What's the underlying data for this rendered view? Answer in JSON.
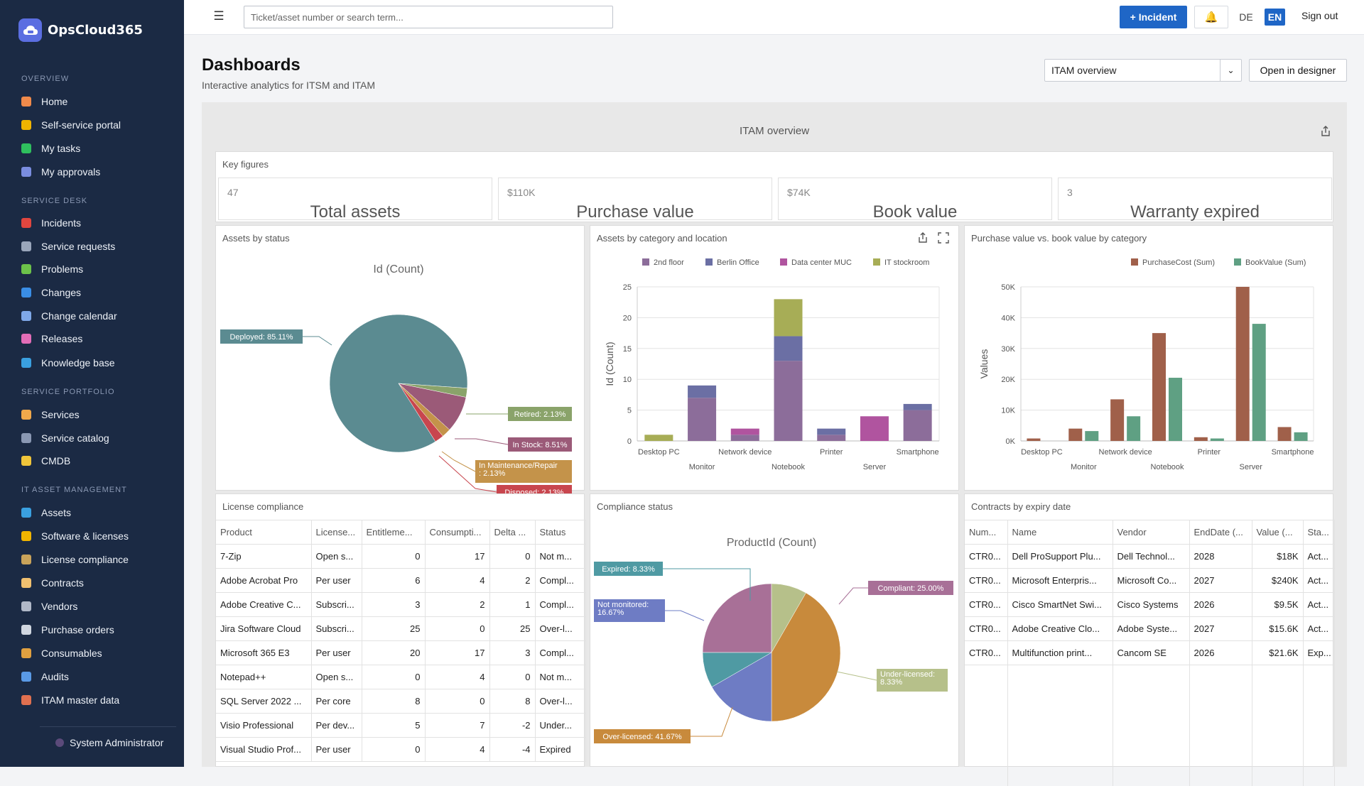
{
  "app": {
    "brand": "OpsCloud365"
  },
  "sidebar": {
    "sections": [
      {
        "label": "OVERVIEW",
        "items": [
          {
            "label": "Home",
            "icon": "home-icon",
            "color": "#f08a4b"
          },
          {
            "label": "Self-service portal",
            "icon": "user-icon",
            "color": "#f0b400"
          },
          {
            "label": "My tasks",
            "icon": "check-square-icon",
            "color": "#2fbf5e"
          },
          {
            "label": "My approvals",
            "icon": "checkmark-icon",
            "color": "#7a8de0"
          }
        ]
      },
      {
        "label": "SERVICE DESK",
        "items": [
          {
            "label": "Incidents",
            "icon": "siren-icon",
            "color": "#e0463f"
          },
          {
            "label": "Service requests",
            "icon": "inbox-icon",
            "color": "#9aa6bb"
          },
          {
            "label": "Problems",
            "icon": "puzzle-icon",
            "color": "#6cc24a"
          },
          {
            "label": "Changes",
            "icon": "refresh-icon",
            "color": "#3a8ee6"
          },
          {
            "label": "Change calendar",
            "icon": "calendar-icon",
            "color": "#7fa8e8"
          },
          {
            "label": "Releases",
            "icon": "rocket-icon",
            "color": "#e26db7"
          },
          {
            "label": "Knowledge base",
            "icon": "books-icon",
            "color": "#3aa0e0"
          }
        ]
      },
      {
        "label": "SERVICE PORTFOLIO",
        "items": [
          {
            "label": "Services",
            "icon": "cloud-icon",
            "color": "#f0a84b"
          },
          {
            "label": "Service catalog",
            "icon": "catalog-icon",
            "color": "#8a98b3"
          },
          {
            "label": "CMDB",
            "icon": "folder-icon",
            "color": "#f0c53a"
          }
        ]
      },
      {
        "label": "IT ASSET MANAGEMENT",
        "items": [
          {
            "label": "Assets",
            "icon": "monitor-icon",
            "color": "#3aa0e0"
          },
          {
            "label": "Software & licenses",
            "icon": "disc-icon",
            "color": "#f0b400"
          },
          {
            "label": "License compliance",
            "icon": "scale-icon",
            "color": "#c9a35a"
          },
          {
            "label": "Contracts",
            "icon": "document-icon",
            "color": "#f0c070"
          },
          {
            "label": "Vendors",
            "icon": "building-icon",
            "color": "#b0b8c8"
          },
          {
            "label": "Purchase orders",
            "icon": "receipt-icon",
            "color": "#d0d6e0"
          },
          {
            "label": "Consumables",
            "icon": "box-icon",
            "color": "#e0a040"
          },
          {
            "label": "Audits",
            "icon": "magnifier-icon",
            "color": "#5a9ae6"
          },
          {
            "label": "ITAM master data",
            "icon": "bricks-icon",
            "color": "#e07050"
          }
        ]
      }
    ],
    "user": "System Administrator"
  },
  "topbar": {
    "search_placeholder": "Ticket/asset number or search term...",
    "incident_button": "+ Incident",
    "lang_de": "DE",
    "lang_en": "EN",
    "sign_out": "Sign out"
  },
  "page": {
    "title": "Dashboards",
    "subtitle": "Interactive analytics for ITSM and ITAM",
    "selected_dashboard": "ITAM overview",
    "open_designer": "Open in designer"
  },
  "dashboard": {
    "title": "ITAM overview",
    "key_figures": {
      "title": "Key figures",
      "items": [
        {
          "small": "47",
          "label": "Total assets"
        },
        {
          "small": "$110K",
          "label": "Purchase value"
        },
        {
          "small": "$74K",
          "label": "Book value"
        },
        {
          "small": "3",
          "label": "Warranty expired"
        }
      ]
    },
    "assets_by_status": {
      "title": "Assets by status"
    },
    "assets_by_category": {
      "title": "Assets by category and location"
    },
    "purchase_vs_book": {
      "title": "Purchase value vs. book value by category"
    },
    "license_compliance": {
      "title": "License compliance",
      "columns": [
        "Product",
        "License...",
        "Entitleme...",
        "Consumpti...",
        "Delta ...",
        "Status"
      ],
      "rows": [
        [
          "7-Zip",
          "Open s...",
          "0",
          "17",
          "0",
          "Not m..."
        ],
        [
          "Adobe Acrobat Pro",
          "Per user",
          "6",
          "4",
          "2",
          "Compl..."
        ],
        [
          "Adobe Creative C...",
          "Subscri...",
          "3",
          "2",
          "1",
          "Compl..."
        ],
        [
          "Jira Software Cloud",
          "Subscri...",
          "25",
          "0",
          "25",
          "Over-l..."
        ],
        [
          "Microsoft 365 E3",
          "Per user",
          "20",
          "17",
          "3",
          "Compl..."
        ],
        [
          "Notepad++",
          "Open s...",
          "0",
          "4",
          "0",
          "Not m..."
        ],
        [
          "SQL Server 2022 ...",
          "Per core",
          "8",
          "0",
          "8",
          "Over-l..."
        ],
        [
          "Visio Professional",
          "Per dev...",
          "5",
          "7",
          "-2",
          "Under..."
        ],
        [
          "Visual Studio Prof...",
          "Per user",
          "0",
          "4",
          "-4",
          "Expired"
        ]
      ]
    },
    "compliance_status": {
      "title": "Compliance status"
    },
    "contracts": {
      "title": "Contracts by expiry date",
      "columns": [
        "Num...",
        "Name",
        "Vendor",
        "EndDate (...",
        "Value (...",
        "Sta..."
      ],
      "rows": [
        [
          "CTR0...",
          "Dell ProSupport Plu...",
          "Dell Technol...",
          "2028",
          "$18K",
          "Act..."
        ],
        [
          "CTR0...",
          "Microsoft Enterpris...",
          "Microsoft Co...",
          "2027",
          "$240K",
          "Act..."
        ],
        [
          "CTR0...",
          "Cisco SmartNet Swi...",
          "Cisco Systems",
          "2026",
          "$9.5K",
          "Act..."
        ],
        [
          "CTR0...",
          "Adobe Creative Clo...",
          "Adobe Syste...",
          "2027",
          "$15.6K",
          "Act..."
        ],
        [
          "CTR0...",
          "Multifunction print...",
          "Cancom SE",
          "2026",
          "$21.6K",
          "Exp..."
        ]
      ]
    }
  },
  "chart_data": [
    {
      "type": "pie",
      "title": "Id (Count)",
      "labels": [
        "Deployed",
        "Retired",
        "In Stock",
        "In Maintenance/Repair",
        "Disposed"
      ],
      "values": [
        85.11,
        2.13,
        8.51,
        2.13,
        2.13
      ],
      "data_labels": [
        "Deployed: 85.11%",
        "Retired: 2.13%",
        "In Stock: 8.51%",
        "In Maintenance/Repair: 2.13%",
        "Disposed: 2.13%"
      ],
      "colors": [
        "#5b8b91",
        "#8aa36a",
        "#9b5a78",
        "#c4934a",
        "#c8464e"
      ]
    },
    {
      "type": "bar",
      "stacked": true,
      "ylabel": "Id (Count)",
      "ylim": [
        0,
        25
      ],
      "yticks": [
        0,
        5,
        10,
        15,
        20,
        25
      ],
      "categories": [
        "Desktop PC",
        "Monitor",
        "Network device",
        "Notebook",
        "Printer",
        "Server",
        "Smartphone"
      ],
      "series": [
        {
          "name": "2nd floor",
          "color": "#8c6d9a",
          "values": [
            0,
            7,
            1,
            13,
            1,
            0,
            5
          ]
        },
        {
          "name": "Berlin Office",
          "color": "#6b6fa4",
          "values": [
            0,
            2,
            0,
            4,
            1,
            0,
            1
          ]
        },
        {
          "name": "Data center MUC",
          "color": "#b0549f",
          "values": [
            0,
            0,
            1,
            0,
            0,
            4,
            0
          ]
        },
        {
          "name": "IT stockroom",
          "color": "#a7ad56",
          "values": [
            1,
            0,
            0,
            6,
            0,
            0,
            0
          ]
        }
      ],
      "legend": "top"
    },
    {
      "type": "bar",
      "ylabel": "Values",
      "ylim": [
        0,
        50000
      ],
      "yticks": [
        "0K",
        "10K",
        "20K",
        "30K",
        "40K",
        "50K"
      ],
      "categories": [
        "Desktop PC",
        "Monitor",
        "Network device",
        "Notebook",
        "Printer",
        "Server",
        "Smartphone"
      ],
      "series": [
        {
          "name": "PurchaseCost (Sum)",
          "color": "#a0604a",
          "values": [
            800,
            4000,
            13500,
            35000,
            1200,
            50000,
            4500
          ]
        },
        {
          "name": "BookValue (Sum)",
          "color": "#5fa083",
          "values": [
            0,
            3200,
            8000,
            20500,
            800,
            38000,
            2800
          ]
        }
      ],
      "legend": "top"
    },
    {
      "type": "pie",
      "title": "ProductId (Count)",
      "labels": [
        "Compliant",
        "Under-licensed",
        "Over-licensed",
        "Not monitored",
        "Expired"
      ],
      "values": [
        25.0,
        8.33,
        41.67,
        16.67,
        8.33
      ],
      "data_labels": [
        "Compliant: 25.00%",
        "Under-licensed: 8.33%",
        "Over-licensed: 41.67%",
        "Not monitored: 16.67%",
        "Expired: 8.33%"
      ],
      "colors": [
        "#a87097",
        "#b6c08a",
        "#c88a3c",
        "#6e7cc4",
        "#4f9aa3"
      ]
    }
  ]
}
